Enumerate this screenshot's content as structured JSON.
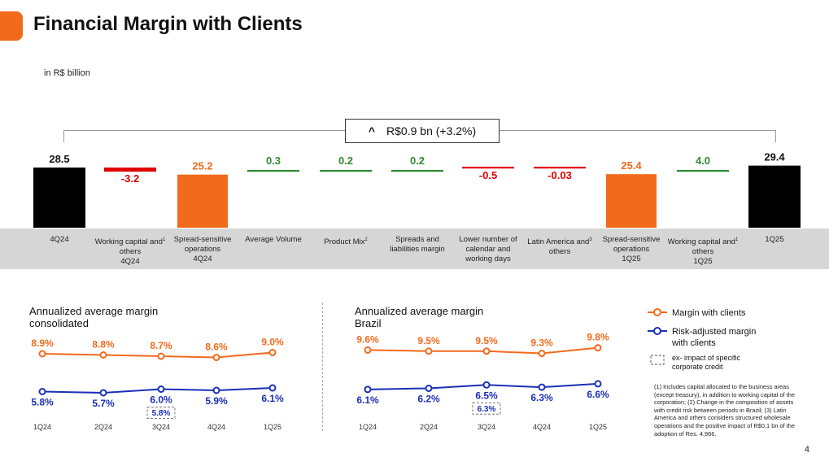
{
  "slide": {
    "title": "Financial Margin with Clients",
    "unit": "in R$ billion",
    "callout": "R$0.9 bn (+3.2%)",
    "page_number": "4"
  },
  "colors": {
    "black": "#000000",
    "red": "#e10000",
    "orange": "#f26a1b",
    "green": "#2e8b2e",
    "blue": "#1a2fb8",
    "band": "#d6d6d6"
  },
  "chart_data": [
    {
      "type": "bar",
      "subtype": "waterfall",
      "title": "Financial Margin with Clients",
      "unit": "R$ billion",
      "categories": [
        {
          "lines": [
            "4Q24"
          ],
          "sup": ""
        },
        {
          "lines": [
            "Working capital and",
            "others",
            "4Q24"
          ],
          "sup": "1"
        },
        {
          "lines": [
            "Spread-sensitive",
            "operations",
            "4Q24"
          ],
          "sup": ""
        },
        {
          "lines": [
            "Average Volume"
          ],
          "sup": ""
        },
        {
          "lines": [
            "Product Mix"
          ],
          "sup": "2"
        },
        {
          "lines": [
            "Spreads and",
            "liabilities margin"
          ],
          "sup": ""
        },
        {
          "lines": [
            "Lower number of",
            "calendar and",
            "working days"
          ],
          "sup": ""
        },
        {
          "lines": [
            "Latin America and",
            "others"
          ],
          "sup": "3"
        },
        {
          "lines": [
            "Spread-sensitive",
            "operations",
            "1Q25"
          ],
          "sup": ""
        },
        {
          "lines": [
            "Working capital and",
            "others",
            "1Q25"
          ],
          "sup": "1"
        },
        {
          "lines": [
            "1Q25"
          ],
          "sup": ""
        }
      ],
      "values": [
        28.5,
        -3.2,
        25.2,
        0.3,
        0.2,
        0.2,
        -0.5,
        -0.03,
        25.4,
        4.0,
        29.4
      ],
      "labels": [
        "28.5",
        "-3.2",
        "25.2",
        "0.3",
        "0.2",
        "0.2",
        "-0.5",
        "-0.03",
        "25.4",
        "4.0",
        "29.4"
      ],
      "kinds": [
        "total",
        "negative",
        "subtotal",
        "positive",
        "positive",
        "positive",
        "negative",
        "negative",
        "subtotal",
        "positive",
        "total"
      ]
    },
    {
      "type": "line",
      "title": "Annualized average margin consolidated",
      "title_lines": [
        "Annualized average margin",
        "consolidated"
      ],
      "categories": [
        "1Q24",
        "2Q24",
        "3Q24",
        "4Q24",
        "1Q25"
      ],
      "ylim": [
        4.5,
        10.5
      ],
      "series": [
        {
          "name": "Margin with clients",
          "values": [
            8.9,
            8.8,
            8.7,
            8.6,
            9.0
          ],
          "labels": [
            "8.9%",
            "8.8%",
            "8.7%",
            "8.6%",
            "9.0%"
          ]
        },
        {
          "name": "Risk-adjusted margin with clients",
          "values": [
            5.8,
            5.7,
            6.0,
            5.9,
            6.1
          ],
          "labels": [
            "5.8%",
            "5.7%",
            "6.0%",
            "5.9%",
            "6.1%"
          ]
        }
      ],
      "annotation": {
        "category": "3Q24",
        "label": "5.8%",
        "note": "ex- impact of specific corporate credit"
      }
    },
    {
      "type": "line",
      "title": "Annualized average margin Brazil",
      "title_lines": [
        "Annualized average margin",
        "Brazil"
      ],
      "categories": [
        "1Q24",
        "2Q24",
        "3Q24",
        "4Q24",
        "1Q25"
      ],
      "ylim": [
        4.5,
        11.0
      ],
      "series": [
        {
          "name": "Margin with clients",
          "values": [
            9.6,
            9.5,
            9.5,
            9.3,
            9.8
          ],
          "labels": [
            "9.6%",
            "9.5%",
            "9.5%",
            "9.3%",
            "9.8%"
          ]
        },
        {
          "name": "Risk-adjusted margin with clients",
          "values": [
            6.1,
            6.2,
            6.5,
            6.3,
            6.6
          ],
          "labels": [
            "6.1%",
            "6.2%",
            "6.5%",
            "6.3%",
            "6.6%"
          ]
        }
      ],
      "annotation": {
        "category": "3Q24",
        "label": "6.3%",
        "note": "ex- impact of specific corporate credit"
      }
    }
  ],
  "legend": {
    "margin": "Margin with clients",
    "risk_line1": "Risk-adjusted margin",
    "risk_line2": "with clients",
    "ex_line1": "ex- impact of specific",
    "ex_line2": "corporate credit"
  },
  "footnote": "(1) Includes capital allocated to the business areas (except treasury), in addition to working capital of the corporation; (2) Change in the composition of assets with credit risk between periods in Brazil; (3) Latin America and others considers structured wholesale operations and the positive impact of R$0.1 bn of the adoption of Res. 4,966."
}
